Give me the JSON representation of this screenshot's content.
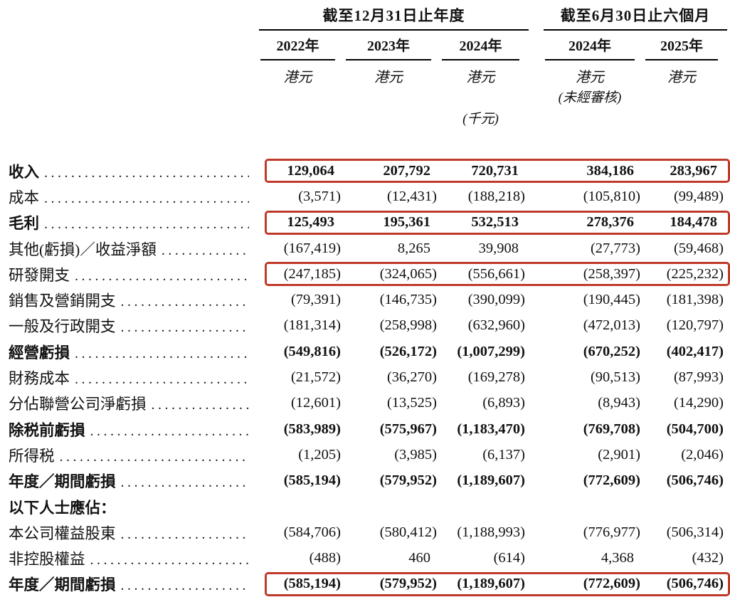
{
  "table": {
    "accent_color": "#bf3a2b",
    "col_groups": [
      {
        "title": "截至12月31日止年度",
        "years": [
          "2022年",
          "2023年",
          "2024年"
        ]
      },
      {
        "title": "截至6月30日止六個月",
        "years": [
          "2024年",
          "2025年"
        ]
      }
    ],
    "currency_label": "港元",
    "unaudited_note": "(未經審核)",
    "unit_note": "(千元)",
    "rows": [
      {
        "label": "收入",
        "bold": true,
        "highlight": true,
        "values": [
          "129,064",
          "207,792",
          "720,731",
          "384,186",
          "283,967"
        ]
      },
      {
        "label": "成本",
        "bold": false,
        "highlight": false,
        "values": [
          "(3,571)",
          "(12,431)",
          "(188,218)",
          "(105,810)",
          "(99,489)"
        ]
      },
      {
        "label": "毛利",
        "bold": true,
        "highlight": true,
        "values": [
          "125,493",
          "195,361",
          "532,513",
          "278,376",
          "184,478"
        ]
      },
      {
        "label": "其他(虧損)／收益淨額",
        "bold": false,
        "highlight": false,
        "values": [
          "(167,419)",
          "8,265",
          "39,908",
          "(27,773)",
          "(59,468)"
        ]
      },
      {
        "label": "研發開支",
        "bold": false,
        "highlight": true,
        "values": [
          "(247,185)",
          "(324,065)",
          "(556,661)",
          "(258,397)",
          "(225,232)"
        ]
      },
      {
        "label": "銷售及營銷開支",
        "bold": false,
        "highlight": false,
        "values": [
          "(79,391)",
          "(146,735)",
          "(390,099)",
          "(190,445)",
          "(181,398)"
        ]
      },
      {
        "label": "一般及行政開支",
        "bold": false,
        "highlight": false,
        "values": [
          "(181,314)",
          "(258,998)",
          "(632,960)",
          "(472,013)",
          "(120,797)"
        ]
      },
      {
        "label": "經營虧損",
        "bold": true,
        "highlight": false,
        "values": [
          "(549,816)",
          "(526,172)",
          "(1,007,299)",
          "(670,252)",
          "(402,417)"
        ]
      },
      {
        "label": "財務成本",
        "bold": false,
        "highlight": false,
        "values": [
          "(21,572)",
          "(36,270)",
          "(169,278)",
          "(90,513)",
          "(87,993)"
        ]
      },
      {
        "label": "分佔聯營公司淨虧損",
        "bold": false,
        "highlight": false,
        "values": [
          "(12,601)",
          "(13,525)",
          "(6,893)",
          "(8,943)",
          "(14,290)"
        ]
      },
      {
        "label": "除税前虧損",
        "bold": true,
        "highlight": false,
        "values": [
          "(583,989)",
          "(575,967)",
          "(1,183,470)",
          "(769,708)",
          "(504,700)"
        ]
      },
      {
        "label": "所得税",
        "bold": false,
        "highlight": false,
        "values": [
          "(1,205)",
          "(3,985)",
          "(6,137)",
          "(2,901)",
          "(2,046)"
        ]
      },
      {
        "label": "年度／期間虧損",
        "bold": true,
        "highlight": false,
        "values": [
          "(585,194)",
          "(579,952)",
          "(1,189,607)",
          "(772,609)",
          "(506,746)"
        ]
      },
      {
        "label": "以下人士應佔：",
        "bold": true,
        "highlight": false,
        "values": []
      },
      {
        "label": "本公司權益股東",
        "bold": false,
        "highlight": false,
        "values": [
          "(584,706)",
          "(580,412)",
          "(1,188,993)",
          "(776,977)",
          "(506,314)"
        ]
      },
      {
        "label": "非控股權益",
        "bold": false,
        "highlight": false,
        "values": [
          "(488)",
          "460",
          "(614)",
          "4,368",
          "(432)"
        ]
      },
      {
        "label": "年度／期間虧損",
        "bold": true,
        "highlight": true,
        "values": [
          "(585,194)",
          "(579,952)",
          "(1,189,607)",
          "(772,609)",
          "(506,746)"
        ]
      }
    ]
  }
}
